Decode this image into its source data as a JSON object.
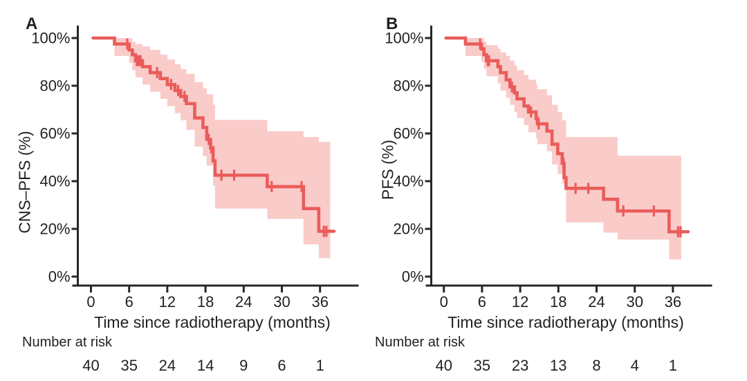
{
  "figure": {
    "background": "#ffffff",
    "curve_color": "#ea5c5a",
    "band_color": "#f9cbc9",
    "axis_color": "#2b2626",
    "text_color": "#231f20"
  },
  "chart_data": [
    {
      "type": "line",
      "subtype": "kaplan-meier-step",
      "panel_label": "A",
      "ylabel": "CNS–PFS (%)",
      "xlabel": "Time since radiotherapy (months)",
      "xlim": [
        0,
        39
      ],
      "ylim": [
        0,
        100
      ],
      "grid": false,
      "x_ticks": [
        0,
        6,
        12,
        18,
        24,
        30,
        36
      ],
      "y_ticks": [
        {
          "value": 0,
          "label": "0%"
        },
        {
          "value": 20,
          "label": "20%"
        },
        {
          "value": 40,
          "label": "40%"
        },
        {
          "value": 60,
          "label": "60%"
        },
        {
          "value": 80,
          "label": "80%"
        },
        {
          "value": 100,
          "label": "100%"
        }
      ],
      "series": [
        {
          "name": "CNS-PFS",
          "steps": [
            [
              0,
              100
            ],
            [
              3.7,
              97.5
            ],
            [
              6.0,
              95
            ],
            [
              6.5,
              93
            ],
            [
              7.0,
              90.5
            ],
            [
              8.1,
              88
            ],
            [
              9.3,
              85.5
            ],
            [
              10.9,
              83
            ],
            [
              12.0,
              80.5
            ],
            [
              13.2,
              78
            ],
            [
              14.1,
              75.5
            ],
            [
              15.0,
              72.5
            ],
            [
              16.3,
              66.5
            ],
            [
              17.6,
              62.5
            ],
            [
              18.2,
              57.5
            ],
            [
              18.8,
              54
            ],
            [
              19.2,
              48.5
            ],
            [
              19.5,
              42.5
            ],
            [
              27.7,
              37.7
            ],
            [
              33.4,
              28.5
            ],
            [
              35.8,
              19
            ]
          ],
          "end_time": 38.2
        }
      ],
      "censor_marks": [
        [
          5.7,
          97.5
        ],
        [
          7.2,
          90.5
        ],
        [
          7.5,
          90.5
        ],
        [
          7.8,
          90.5
        ],
        [
          10.4,
          85.5
        ],
        [
          12.6,
          80.5
        ],
        [
          13.7,
          78
        ],
        [
          14.7,
          75.5
        ],
        [
          18.5,
          57.5
        ],
        [
          18.9,
          54
        ],
        [
          20.5,
          42.5
        ],
        [
          22.5,
          42.5
        ],
        [
          28.4,
          37.7
        ],
        [
          33.1,
          37.7
        ],
        [
          36.6,
          19
        ],
        [
          37.0,
          19
        ]
      ],
      "ci_band": {
        "steps": [
          [
            3.7,
            92.5,
            100
          ],
          [
            6.0,
            89.5,
            100
          ],
          [
            6.5,
            86.5,
            98.5
          ],
          [
            7.0,
            83.5,
            97.5
          ],
          [
            8.1,
            80.5,
            96.5
          ],
          [
            9.3,
            77.5,
            95
          ],
          [
            10.9,
            74.5,
            93
          ],
          [
            12.0,
            71.5,
            91
          ],
          [
            13.2,
            68.5,
            89
          ],
          [
            14.1,
            65.5,
            87
          ],
          [
            15.0,
            61.5,
            85
          ],
          [
            16.3,
            54.5,
            81.5
          ],
          [
            17.6,
            50.5,
            79
          ],
          [
            18.2,
            46.5,
            76.5
          ],
          [
            19.2,
            38,
            72
          ],
          [
            19.5,
            28.5,
            65.7
          ],
          [
            27.7,
            24.2,
            60.9
          ],
          [
            33.4,
            13.5,
            58.5
          ],
          [
            35.8,
            7.7,
            56.5
          ]
        ],
        "end_time": 37.6
      },
      "number_at_risk": {
        "label": "Number at risk",
        "times": [
          0,
          6,
          12,
          18,
          24,
          30,
          36
        ],
        "counts": [
          40,
          35,
          24,
          14,
          9,
          6,
          1
        ]
      }
    },
    {
      "type": "line",
      "subtype": "kaplan-meier-step",
      "panel_label": "B",
      "ylabel": "PFS (%)",
      "xlabel": "Time since radiotherapy (months)",
      "xlim": [
        0,
        39
      ],
      "ylim": [
        0,
        100
      ],
      "grid": false,
      "x_ticks": [
        0,
        6,
        12,
        18,
        24,
        30,
        36
      ],
      "y_ticks": [
        {
          "value": 0,
          "label": "0%"
        },
        {
          "value": 20,
          "label": "20%"
        },
        {
          "value": 40,
          "label": "40%"
        },
        {
          "value": 60,
          "label": "60%"
        },
        {
          "value": 80,
          "label": "80%"
        },
        {
          "value": 100,
          "label": "100%"
        }
      ],
      "series": [
        {
          "name": "PFS",
          "steps": [
            [
              0,
              100
            ],
            [
              3.4,
              97.5
            ],
            [
              5.9,
              95.5
            ],
            [
              6.3,
              93
            ],
            [
              6.7,
              90.5
            ],
            [
              8.5,
              88
            ],
            [
              8.9,
              85.5
            ],
            [
              9.8,
              82.5
            ],
            [
              10.4,
              79.5
            ],
            [
              11.1,
              77
            ],
            [
              11.5,
              74.5
            ],
            [
              12.6,
              71.5
            ],
            [
              13.3,
              69
            ],
            [
              14.5,
              66.3
            ],
            [
              14.7,
              64
            ],
            [
              16.2,
              61
            ],
            [
              17.0,
              55.5
            ],
            [
              17.9,
              51.5
            ],
            [
              18.6,
              47.5
            ],
            [
              18.9,
              41.5
            ],
            [
              19.2,
              37
            ],
            [
              25.1,
              32.4
            ],
            [
              27.3,
              27.5
            ],
            [
              35.4,
              18.8
            ]
          ],
          "end_time": 38.4
        }
      ],
      "censor_marks": [
        [
          5.7,
          97.5
        ],
        [
          6.9,
          90.5
        ],
        [
          7.1,
          90.5
        ],
        [
          10.7,
          79.5
        ],
        [
          13.7,
          69
        ],
        [
          14.9,
          64
        ],
        [
          18.8,
          47.5
        ],
        [
          20.7,
          37
        ],
        [
          22.7,
          37
        ],
        [
          28.2,
          27.5
        ],
        [
          33.0,
          27.5
        ],
        [
          36.8,
          18.8
        ],
        [
          37.2,
          18.8
        ]
      ],
      "ci_band": {
        "steps": [
          [
            3.4,
            92.5,
            100
          ],
          [
            5.9,
            90,
            100
          ],
          [
            6.3,
            87,
            98.5
          ],
          [
            6.7,
            84,
            97
          ],
          [
            8.5,
            81,
            95.5
          ],
          [
            8.9,
            78,
            94
          ],
          [
            9.8,
            75,
            92.5
          ],
          [
            10.4,
            72,
            90.5
          ],
          [
            11.1,
            69,
            88.5
          ],
          [
            11.5,
            66.5,
            86.5
          ],
          [
            12.6,
            63.5,
            84.5
          ],
          [
            13.3,
            60.5,
            82.5
          ],
          [
            14.5,
            58,
            80.5
          ],
          [
            14.7,
            55.5,
            78.5
          ],
          [
            16.2,
            52.5,
            76
          ],
          [
            17.0,
            47,
            72
          ],
          [
            17.9,
            43,
            69
          ],
          [
            18.6,
            39,
            65.5
          ],
          [
            19.2,
            22.7,
            58.5
          ],
          [
            25.1,
            18.4,
            58.5
          ],
          [
            27.3,
            15.5,
            50.7
          ],
          [
            35.4,
            7.2,
            50.7
          ]
        ],
        "end_time": 37.3
      },
      "number_at_risk": {
        "label": "Number at risk",
        "times": [
          0,
          6,
          12,
          18,
          24,
          30,
          36
        ],
        "counts": [
          40,
          35,
          23,
          13,
          8,
          4,
          1
        ]
      }
    }
  ]
}
